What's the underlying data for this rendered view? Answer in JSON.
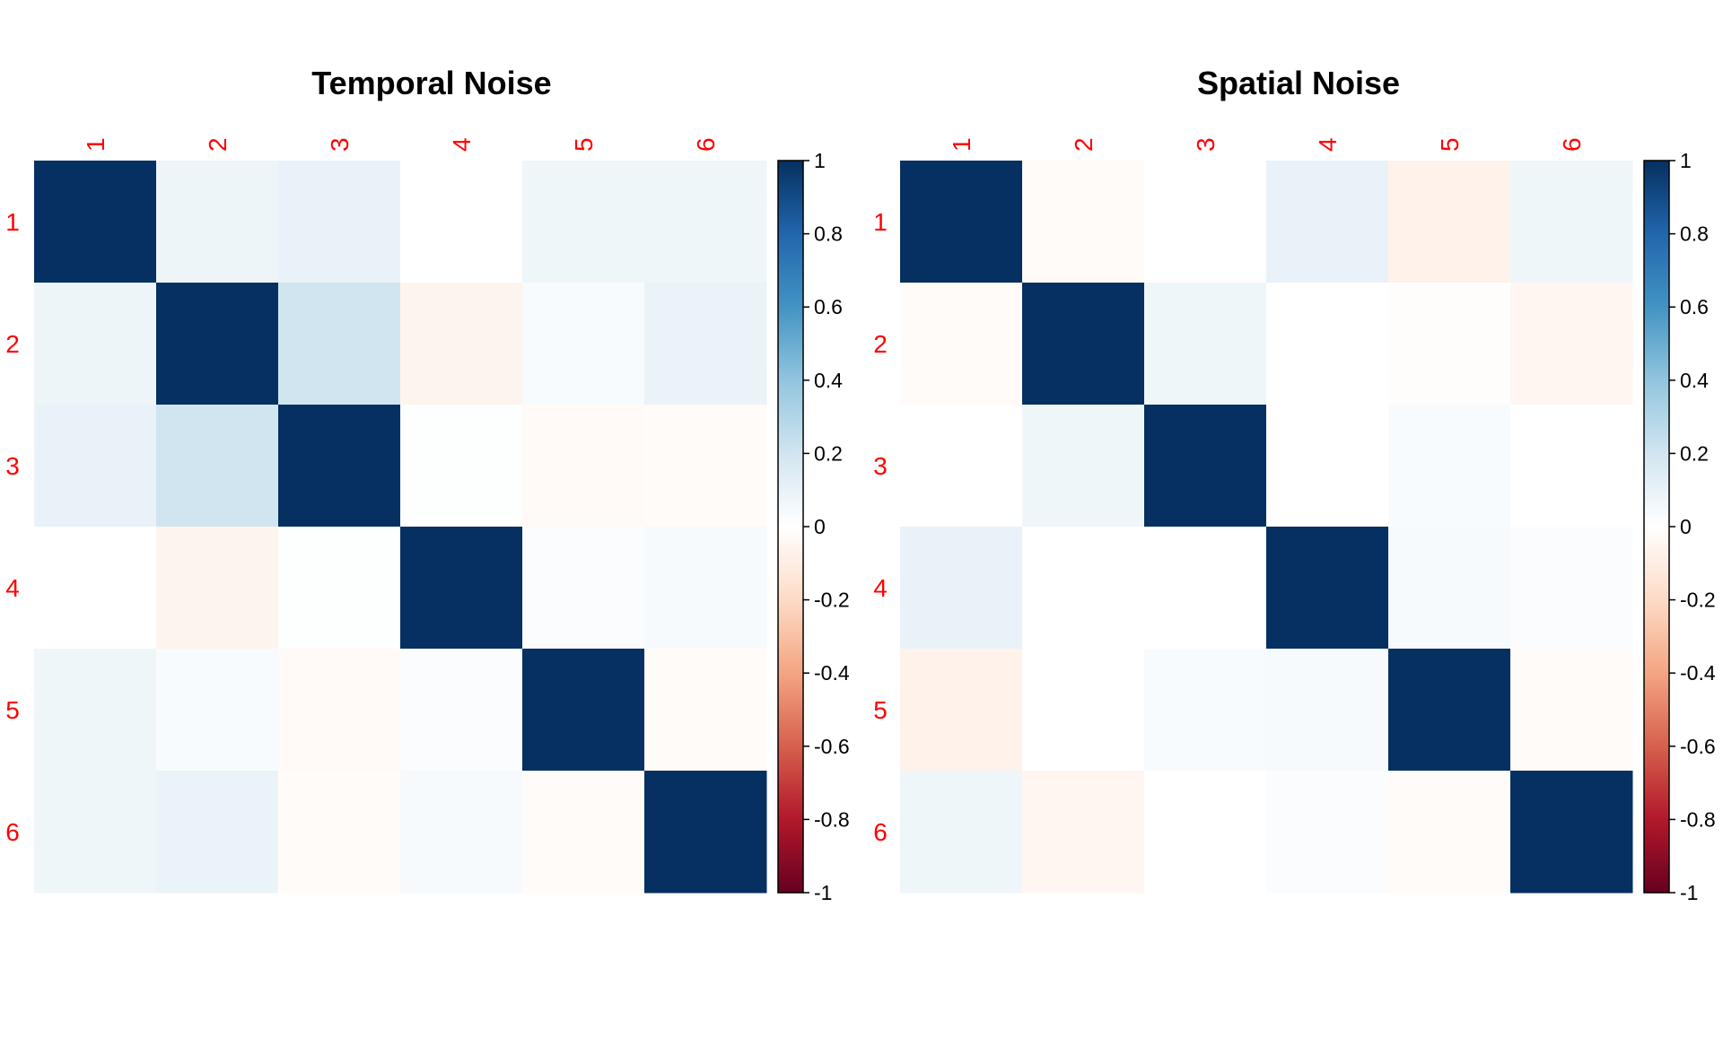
{
  "chart_data": [
    {
      "type": "heatmap",
      "title": "Temporal Noise",
      "row_labels": [
        "1",
        "2",
        "3",
        "4",
        "5",
        "6"
      ],
      "col_labels": [
        "1",
        "2",
        "3",
        "4",
        "5",
        "6"
      ],
      "values": [
        [
          1.0,
          0.08,
          0.1,
          0.0,
          0.07,
          0.07
        ],
        [
          0.08,
          1.0,
          0.2,
          -0.06,
          0.03,
          0.09
        ],
        [
          0.1,
          0.2,
          1.0,
          0.01,
          -0.03,
          -0.02
        ],
        [
          0.0,
          -0.06,
          0.01,
          1.0,
          0.02,
          0.04
        ],
        [
          0.07,
          0.03,
          -0.03,
          0.02,
          1.0,
          -0.02
        ],
        [
          0.07,
          0.09,
          -0.02,
          0.04,
          -0.02,
          1.0
        ]
      ],
      "colorbar": {
        "range": [
          -1,
          1
        ],
        "ticks": [
          "1",
          "0.8",
          "0.6",
          "0.4",
          "0.2",
          "0",
          "-0.2",
          "-0.4",
          "-0.6",
          "-0.8",
          "-1"
        ]
      },
      "label_color": "#ff0000",
      "colorscale": "RdBu"
    },
    {
      "type": "heatmap",
      "title": "Spatial Noise",
      "row_labels": [
        "1",
        "2",
        "3",
        "4",
        "5",
        "6"
      ],
      "col_labels": [
        "1",
        "2",
        "3",
        "4",
        "5",
        "6"
      ],
      "values": [
        [
          1.0,
          -0.02,
          0.0,
          0.1,
          -0.07,
          0.07
        ],
        [
          -0.02,
          1.0,
          0.07,
          0.0,
          -0.01,
          -0.05
        ],
        [
          0.0,
          0.07,
          1.0,
          0.0,
          0.03,
          0.0
        ],
        [
          0.1,
          0.0,
          0.0,
          1.0,
          0.04,
          0.02
        ],
        [
          -0.07,
          0.0,
          0.03,
          0.04,
          1.0,
          -0.02
        ],
        [
          0.07,
          -0.05,
          0.0,
          0.02,
          -0.02,
          1.0
        ]
      ],
      "colorbar": {
        "range": [
          -1,
          1
        ],
        "ticks": [
          "1",
          "0.8",
          "0.6",
          "0.4",
          "0.2",
          "0",
          "-0.2",
          "-0.4",
          "-0.6",
          "-0.8",
          "-1"
        ]
      },
      "label_color": "#ff0000",
      "colorscale": "RdBu"
    }
  ]
}
